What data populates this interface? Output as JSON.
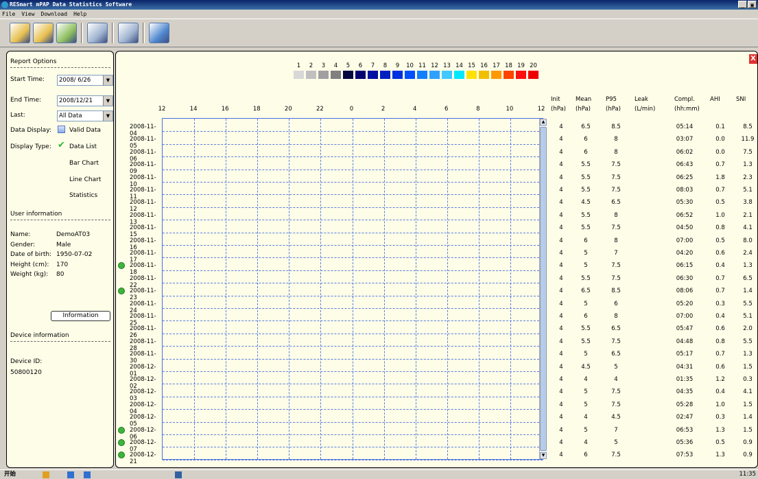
{
  "window": {
    "title": "RESmart mPAP Data Statistics Software",
    "min_btn": "_",
    "max_btn": "▣"
  },
  "menu": [
    "File",
    "View",
    "Download",
    "Help"
  ],
  "toolbar": [
    {
      "name": "open-file-icon",
      "color": "#e8c050"
    },
    {
      "name": "open-folder-icon",
      "color": "#e8c050"
    },
    {
      "name": "download-icon",
      "color": "#8fbf5f"
    },
    {
      "name": "settings-icon",
      "color": "#a0b4d0"
    },
    {
      "name": "refresh-icon",
      "color": "#a0b4d0"
    },
    {
      "name": "help-icon",
      "color": "#5088d0"
    }
  ],
  "report": {
    "heading": "Report Options",
    "start_label": "Start Time:",
    "start_value": "2008/ 6/26",
    "end_label": "End Time:",
    "end_value": "2008/12/21",
    "last_label": "Last:",
    "last_value": "All Data",
    "display_label": "Data Display:",
    "display_value": "Valid Data",
    "type_label": "Display Type:",
    "types": [
      "Data List",
      "Bar Chart",
      "Line Chart",
      "Statistics"
    ]
  },
  "user": {
    "heading": "User information",
    "fields": [
      {
        "label": "Name:",
        "value": "DemoAT03"
      },
      {
        "label": "Gender:",
        "value": "Male"
      },
      {
        "label": "Date of birth:",
        "value": "1950-07-02"
      },
      {
        "label": "Height (cm):",
        "value": "170"
      },
      {
        "label": "Weight (kg):",
        "value": "80"
      }
    ],
    "button": "Information"
  },
  "device": {
    "heading": "Device information",
    "id_label": "Device ID:",
    "id_value": "50800120"
  },
  "legend": {
    "labels": [
      "1",
      "2",
      "3",
      "4",
      "5",
      "6",
      "7",
      "8",
      "9",
      "10",
      "11",
      "12",
      "13",
      "14",
      "15",
      "16",
      "17",
      "18",
      "19",
      "20"
    ],
    "colors": [
      "#d8d8d8",
      "#c0c0c0",
      "#a0a0a0",
      "#808080",
      "#080840",
      "#000070",
      "#0010a0",
      "#0020c0",
      "#0030e0",
      "#0050ff",
      "#1080ff",
      "#30a0ff",
      "#40c8ff",
      "#00e8ff",
      "#ffe000",
      "#f0c000",
      "#ff9900",
      "#ff4400",
      "#ff1010",
      "#ee0000"
    ]
  },
  "x_ticks": [
    "12",
    "14",
    "16",
    "18",
    "20",
    "22",
    "0",
    "2",
    "4",
    "6",
    "8",
    "10",
    "12"
  ],
  "columns": [
    [
      "Init",
      "(hPa)"
    ],
    [
      "Mean",
      "(hPa)"
    ],
    [
      "P95",
      "(hPa)"
    ],
    [
      "Leak",
      "(L/min)"
    ],
    [
      "Compl.",
      "(hh:mm)"
    ],
    [
      "AHI",
      ""
    ],
    [
      "SNI",
      ""
    ]
  ],
  "rows": [
    {
      "date": "2008-11-04",
      "mark": false,
      "init": "4",
      "mean": "6.5",
      "p95": "8.5",
      "leak": "",
      "compl": "05:14",
      "ahi": "0.1",
      "sni": "8.5"
    },
    {
      "date": "2008-11-05",
      "mark": false,
      "init": "4",
      "mean": "6",
      "p95": "8",
      "leak": "",
      "compl": "03:07",
      "ahi": "0.0",
      "sni": "11.9"
    },
    {
      "date": "2008-11-06",
      "mark": false,
      "init": "4",
      "mean": "6",
      "p95": "8",
      "leak": "",
      "compl": "06:02",
      "ahi": "0.0",
      "sni": "7.5"
    },
    {
      "date": "2008-11-09",
      "mark": false,
      "init": "4",
      "mean": "5.5",
      "p95": "7.5",
      "leak": "",
      "compl": "06:43",
      "ahi": "0.7",
      "sni": "1.3"
    },
    {
      "date": "2008-11-10",
      "mark": false,
      "init": "4",
      "mean": "5.5",
      "p95": "7.5",
      "leak": "",
      "compl": "06:25",
      "ahi": "1.8",
      "sni": "2.3"
    },
    {
      "date": "2008-11-11",
      "mark": false,
      "init": "4",
      "mean": "5.5",
      "p95": "7.5",
      "leak": "",
      "compl": "08:03",
      "ahi": "0.7",
      "sni": "5.1"
    },
    {
      "date": "2008-11-12",
      "mark": false,
      "init": "4",
      "mean": "4.5",
      "p95": "6.5",
      "leak": "",
      "compl": "05:30",
      "ahi": "0.5",
      "sni": "3.8"
    },
    {
      "date": "2008-11-13",
      "mark": false,
      "init": "4",
      "mean": "5.5",
      "p95": "8",
      "leak": "",
      "compl": "06:52",
      "ahi": "1.0",
      "sni": "2.1"
    },
    {
      "date": "2008-11-15",
      "mark": false,
      "init": "4",
      "mean": "5.5",
      "p95": "7.5",
      "leak": "",
      "compl": "04:50",
      "ahi": "0.8",
      "sni": "4.1"
    },
    {
      "date": "2008-11-16",
      "mark": false,
      "init": "4",
      "mean": "6",
      "p95": "8",
      "leak": "",
      "compl": "07:00",
      "ahi": "0.5",
      "sni": "8.0"
    },
    {
      "date": "2008-11-17",
      "mark": false,
      "init": "4",
      "mean": "5",
      "p95": "7",
      "leak": "",
      "compl": "04:20",
      "ahi": "0.6",
      "sni": "2.4"
    },
    {
      "date": "2008-11-18",
      "mark": true,
      "init": "4",
      "mean": "5",
      "p95": "7.5",
      "leak": "",
      "compl": "06:15",
      "ahi": "0.4",
      "sni": "1.3"
    },
    {
      "date": "2008-11-22",
      "mark": false,
      "init": "4",
      "mean": "5.5",
      "p95": "7.5",
      "leak": "",
      "compl": "06:30",
      "ahi": "0.7",
      "sni": "6.5"
    },
    {
      "date": "2008-11-23",
      "mark": true,
      "init": "4",
      "mean": "6.5",
      "p95": "8.5",
      "leak": "",
      "compl": "08:06",
      "ahi": "0.7",
      "sni": "1.4"
    },
    {
      "date": "2008-11-24",
      "mark": false,
      "init": "4",
      "mean": "5",
      "p95": "6",
      "leak": "",
      "compl": "05:20",
      "ahi": "0.3",
      "sni": "5.5"
    },
    {
      "date": "2008-11-25",
      "mark": false,
      "init": "4",
      "mean": "6",
      "p95": "8",
      "leak": "",
      "compl": "07:00",
      "ahi": "0.4",
      "sni": "5.1"
    },
    {
      "date": "2008-11-26",
      "mark": false,
      "init": "4",
      "mean": "5.5",
      "p95": "6.5",
      "leak": "",
      "compl": "05:47",
      "ahi": "0.6",
      "sni": "2.0"
    },
    {
      "date": "2008-11-28",
      "mark": false,
      "init": "4",
      "mean": "5.5",
      "p95": "7.5",
      "leak": "",
      "compl": "04:48",
      "ahi": "0.8",
      "sni": "5.5"
    },
    {
      "date": "2008-11-30",
      "mark": false,
      "init": "4",
      "mean": "5",
      "p95": "6.5",
      "leak": "",
      "compl": "05:17",
      "ahi": "0.7",
      "sni": "1.3"
    },
    {
      "date": "2008-12-01",
      "mark": false,
      "init": "4",
      "mean": "4.5",
      "p95": "5",
      "leak": "",
      "compl": "04:31",
      "ahi": "0.6",
      "sni": "1.5"
    },
    {
      "date": "2008-12-02",
      "mark": false,
      "init": "4",
      "mean": "4",
      "p95": "4",
      "leak": "",
      "compl": "01:35",
      "ahi": "1.2",
      "sni": "0.3"
    },
    {
      "date": "2008-12-03",
      "mark": false,
      "init": "4",
      "mean": "5",
      "p95": "7.5",
      "leak": "",
      "compl": "04:35",
      "ahi": "0.4",
      "sni": "4.1"
    },
    {
      "date": "2008-12-04",
      "mark": false,
      "init": "4",
      "mean": "5",
      "p95": "7.5",
      "leak": "",
      "compl": "05:28",
      "ahi": "1.0",
      "sni": "1.5"
    },
    {
      "date": "2008-12-05",
      "mark": false,
      "init": "4",
      "mean": "4",
      "p95": "4.5",
      "leak": "",
      "compl": "02:47",
      "ahi": "0.3",
      "sni": "1.4"
    },
    {
      "date": "2008-12-06",
      "mark": true,
      "init": "4",
      "mean": "5",
      "p95": "7",
      "leak": "",
      "compl": "06:53",
      "ahi": "1.3",
      "sni": "1.5"
    },
    {
      "date": "2008-12-07",
      "mark": true,
      "init": "4",
      "mean": "4",
      "p95": "5",
      "leak": "",
      "compl": "05:36",
      "ahi": "0.5",
      "sni": "0.9"
    },
    {
      "date": "2008-12-21",
      "mark": true,
      "init": "4",
      "mean": "6",
      "p95": "7.5",
      "leak": "",
      "compl": "07:53",
      "ahi": "1.3",
      "sni": "0.9"
    }
  ],
  "close_label": "X",
  "taskbar": {
    "start": "开始",
    "clock": "11:35"
  }
}
